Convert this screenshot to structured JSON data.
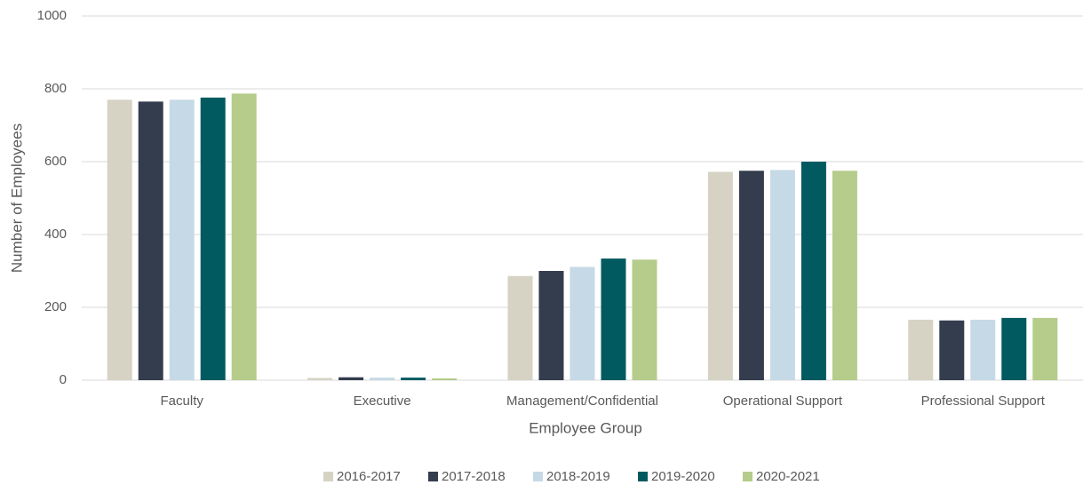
{
  "chart_data": {
    "type": "bar",
    "x_label": "Employee Group",
    "y_label": "Number of Employees",
    "categories": [
      "Faculty",
      "Executive",
      "Management/Confidential",
      "Operational Support",
      "Professional Support"
    ],
    "series": [
      {
        "name": "2016-2017",
        "color": "#d6d3c4",
        "values": [
          770,
          6,
          286,
          572,
          166
        ]
      },
      {
        "name": "2017-2018",
        "color": "#343d4e",
        "values": [
          765,
          8,
          300,
          575,
          164
        ]
      },
      {
        "name": "2018-2019",
        "color": "#c6d9e6",
        "values": [
          770,
          7,
          311,
          577,
          166
        ]
      },
      {
        "name": "2019-2020",
        "color": "#005a60",
        "values": [
          776,
          7,
          334,
          600,
          171
        ]
      },
      {
        "name": "2020-2021",
        "color": "#b5cc8a",
        "values": [
          787,
          5,
          331,
          575,
          171
        ]
      }
    ],
    "ylim": [
      0,
      1000
    ],
    "yticks": [
      0,
      200,
      400,
      600,
      800,
      1000
    ],
    "grid": true,
    "legend": "bottom"
  }
}
